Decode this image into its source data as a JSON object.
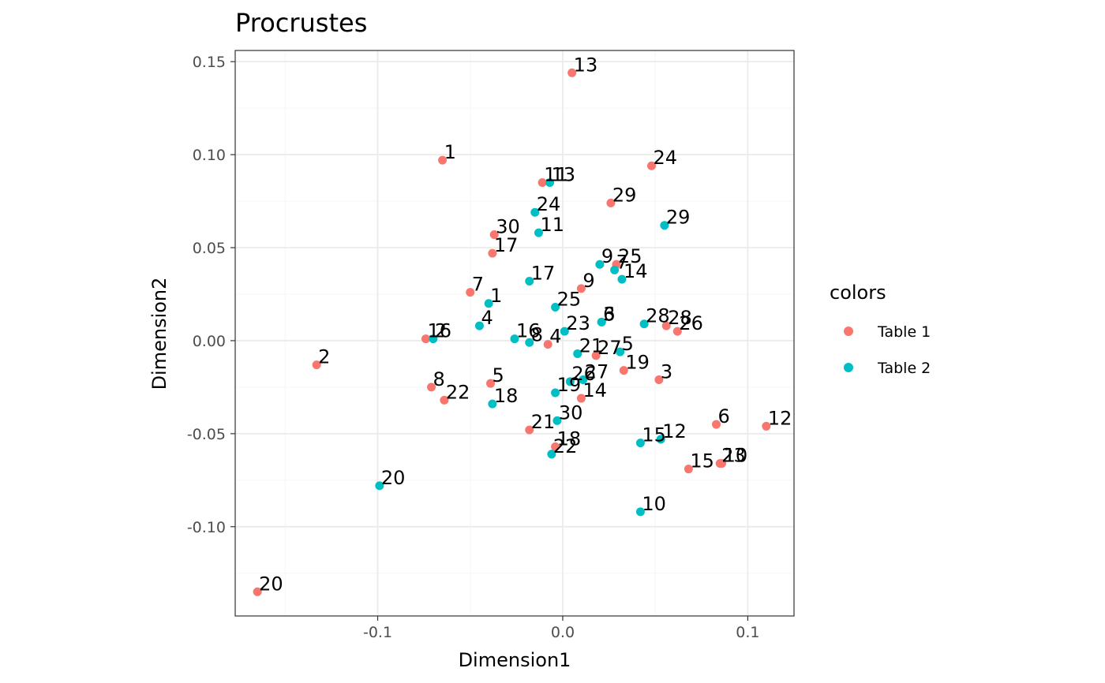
{
  "chart_data": {
    "type": "scatter",
    "title": "Procrustes",
    "xlabel": "Dimension1",
    "ylabel": "Dimension2",
    "xlim": [
      -0.177,
      0.125
    ],
    "ylim": [
      -0.148,
      0.156
    ],
    "x_ticks": [
      -0.1,
      0.0,
      0.1
    ],
    "x_tick_labels": [
      "-0.1",
      "0.0",
      "0.1"
    ],
    "y_ticks": [
      -0.1,
      -0.05,
      0.0,
      0.05,
      0.1,
      0.15
    ],
    "y_tick_labels": [
      "-0.10",
      "-0.05",
      "0.00",
      "0.05",
      "0.10",
      "0.15"
    ],
    "grid": true,
    "legend": {
      "title": "colors",
      "position": "right"
    },
    "series": [
      {
        "name": "Table 1",
        "color": "#F8766D",
        "points": [
          {
            "x": -0.065,
            "y": 0.097,
            "label": "1"
          },
          {
            "x": -0.133,
            "y": -0.013,
            "label": "2"
          },
          {
            "x": 0.052,
            "y": -0.021,
            "label": "3"
          },
          {
            "x": -0.008,
            "y": -0.002,
            "label": "4"
          },
          {
            "x": -0.039,
            "y": -0.023,
            "label": "5"
          },
          {
            "x": 0.083,
            "y": -0.045,
            "label": "6"
          },
          {
            "x": -0.05,
            "y": 0.026,
            "label": "7"
          },
          {
            "x": -0.071,
            "y": -0.025,
            "label": "8"
          },
          {
            "x": 0.01,
            "y": 0.028,
            "label": "9"
          },
          {
            "x": 0.086,
            "y": -0.066,
            "label": "10"
          },
          {
            "x": -0.011,
            "y": 0.085,
            "label": "11"
          },
          {
            "x": 0.11,
            "y": -0.046,
            "label": "12"
          },
          {
            "x": 0.005,
            "y": 0.144,
            "label": "13"
          },
          {
            "x": 0.01,
            "y": -0.031,
            "label": "14"
          },
          {
            "x": 0.068,
            "y": -0.069,
            "label": "15"
          },
          {
            "x": -0.074,
            "y": 0.001,
            "label": "16"
          },
          {
            "x": -0.038,
            "y": 0.047,
            "label": "17"
          },
          {
            "x": -0.004,
            "y": -0.057,
            "label": "18"
          },
          {
            "x": 0.033,
            "y": -0.016,
            "label": "19"
          },
          {
            "x": -0.165,
            "y": -0.135,
            "label": "20"
          },
          {
            "x": -0.018,
            "y": -0.048,
            "label": "21"
          },
          {
            "x": -0.064,
            "y": -0.032,
            "label": "22"
          },
          {
            "x": 0.085,
            "y": -0.066,
            "label": "23"
          },
          {
            "x": 0.048,
            "y": 0.094,
            "label": "24"
          },
          {
            "x": 0.029,
            "y": 0.041,
            "label": "25"
          },
          {
            "x": 0.062,
            "y": 0.005,
            "label": "26"
          },
          {
            "x": 0.018,
            "y": -0.008,
            "label": "27"
          },
          {
            "x": 0.056,
            "y": 0.008,
            "label": "28"
          },
          {
            "x": 0.026,
            "y": 0.074,
            "label": "29"
          },
          {
            "x": -0.037,
            "y": 0.057,
            "label": "30"
          }
        ]
      },
      {
        "name": "Table 2",
        "color": "#00BFC4",
        "points": [
          {
            "x": -0.04,
            "y": 0.02,
            "label": "1"
          },
          {
            "x": -0.07,
            "y": 0.001,
            "label": "2"
          },
          {
            "x": 0.021,
            "y": 0.01,
            "label": "3"
          },
          {
            "x": -0.045,
            "y": 0.008,
            "label": "4"
          },
          {
            "x": 0.031,
            "y": -0.006,
            "label": "5"
          },
          {
            "x": 0.021,
            "y": 0.01,
            "label": "6"
          },
          {
            "x": 0.028,
            "y": 0.038,
            "label": "7"
          },
          {
            "x": -0.018,
            "y": -0.001,
            "label": "8"
          },
          {
            "x": 0.02,
            "y": 0.041,
            "label": "9"
          },
          {
            "x": 0.042,
            "y": -0.092,
            "label": "10"
          },
          {
            "x": -0.013,
            "y": 0.058,
            "label": "11"
          },
          {
            "x": 0.053,
            "y": -0.053,
            "label": "12"
          },
          {
            "x": -0.007,
            "y": 0.085,
            "label": "13"
          },
          {
            "x": 0.032,
            "y": 0.033,
            "label": "14"
          },
          {
            "x": 0.042,
            "y": -0.055,
            "label": "15"
          },
          {
            "x": -0.026,
            "y": 0.001,
            "label": "16"
          },
          {
            "x": -0.018,
            "y": 0.032,
            "label": "17"
          },
          {
            "x": -0.038,
            "y": -0.034,
            "label": "18"
          },
          {
            "x": -0.004,
            "y": -0.028,
            "label": "19"
          },
          {
            "x": -0.099,
            "y": -0.078,
            "label": "20"
          },
          {
            "x": 0.008,
            "y": -0.007,
            "label": "21"
          },
          {
            "x": -0.006,
            "y": -0.061,
            "label": "22"
          },
          {
            "x": 0.001,
            "y": 0.005,
            "label": "23"
          },
          {
            "x": -0.015,
            "y": 0.069,
            "label": "24"
          },
          {
            "x": -0.004,
            "y": 0.018,
            "label": "25"
          },
          {
            "x": 0.004,
            "y": -0.022,
            "label": "26"
          },
          {
            "x": 0.011,
            "y": -0.021,
            "label": "27"
          },
          {
            "x": 0.044,
            "y": 0.009,
            "label": "28"
          },
          {
            "x": 0.055,
            "y": 0.062,
            "label": "29"
          },
          {
            "x": -0.003,
            "y": -0.043,
            "label": "30"
          }
        ]
      }
    ]
  }
}
